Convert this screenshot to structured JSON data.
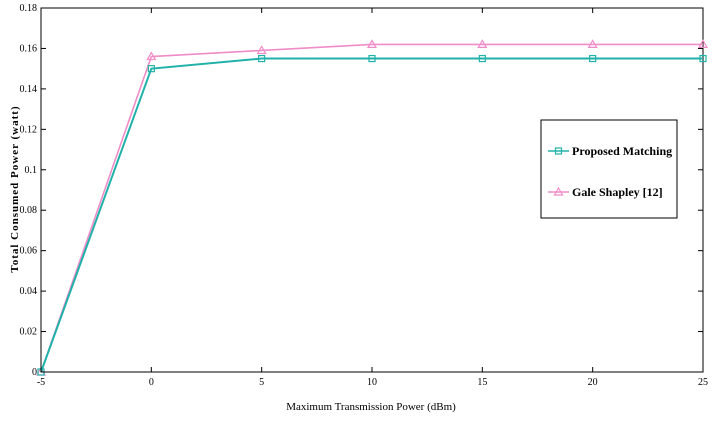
{
  "chart_data": {
    "type": "line",
    "xlabel": "Maximum Transmission Power (dBm)",
    "ylabel": "Total Consumed Power (watt)",
    "xlim": [
      -5,
      25
    ],
    "ylim": [
      0,
      0.18
    ],
    "x_ticks": [
      "-5",
      "0",
      "5",
      "10",
      "15",
      "20",
      "25"
    ],
    "y_ticks": [
      "0",
      "0.02",
      "0.04",
      "0.06",
      "0.08",
      "0.1",
      "0.12",
      "0.14",
      "0.16",
      "0.18"
    ],
    "grid": false,
    "legend_position": "right",
    "x": [
      -5,
      0,
      5,
      10,
      15,
      20,
      25
    ],
    "series": [
      {
        "name": "Proposed Matching",
        "values": [
          0.0,
          0.15,
          0.155,
          0.155,
          0.155,
          0.155,
          0.155
        ],
        "color": "#20b2aa",
        "marker": "square"
      },
      {
        "name": "Gale Shapley [12]",
        "values": [
          0.0,
          0.156,
          0.159,
          0.162,
          0.162,
          0.162,
          0.162
        ],
        "color": "#f08cc8",
        "marker": "triangle"
      }
    ]
  }
}
